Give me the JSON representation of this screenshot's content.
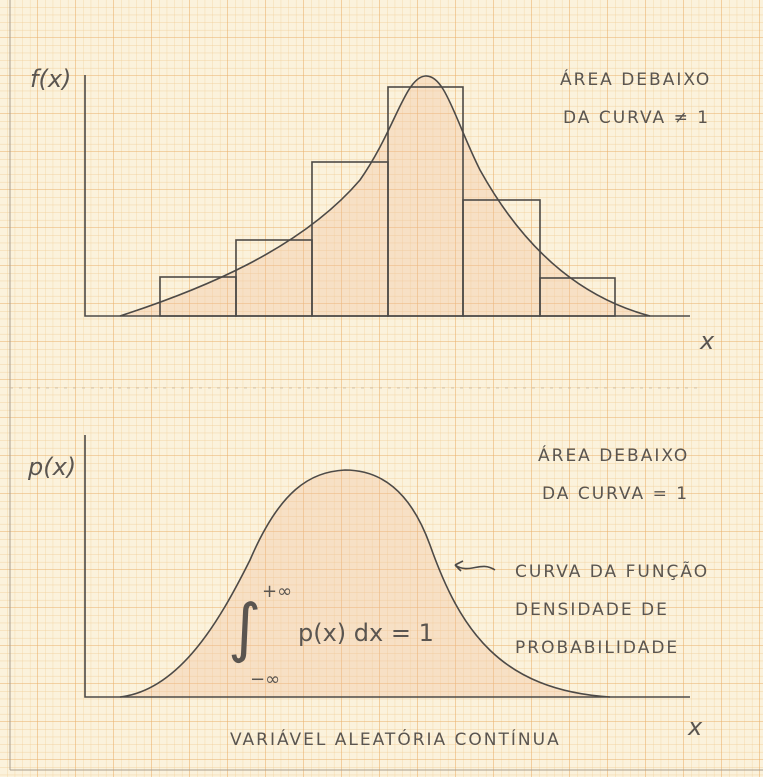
{
  "top_panel": {
    "y_label": "f(x)",
    "x_label": "x",
    "note": [
      "ÁREA DEBAIXO",
      "DA CURVA ≠ 1"
    ]
  },
  "bottom_panel": {
    "y_label": "p(x)",
    "x_label": "x",
    "note": [
      "ÁREA DEBAIXO",
      "DA CURVA = 1"
    ],
    "curve_label": [
      "CURVA DA FUNÇÃO",
      "DENSIDADE DE",
      "PROBABILIDADE"
    ],
    "integral": {
      "symbol": "∫",
      "upper": "+∞",
      "lower": "−∞",
      "expression": "p(x) dx = 1"
    },
    "caption": "VARIÁVEL ALEATÓRIA CONTÍNUA"
  }
}
